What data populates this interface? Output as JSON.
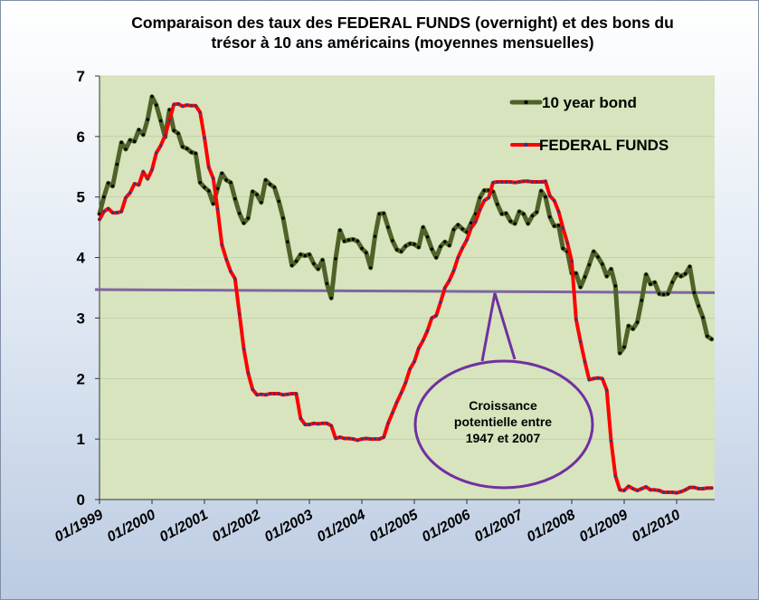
{
  "chart_data": {
    "type": "line",
    "title_line1": "Comparaison des taux des FEDERAL FUNDS (overnight) et des bons du",
    "title_line2": "trésor  à 10 ans américains (moyennes mensuelles)",
    "xlabel": "",
    "ylabel": "",
    "ylim": [
      0,
      7
    ],
    "yticks": [
      "0",
      "1",
      "2",
      "3",
      "4",
      "5",
      "6",
      "7"
    ],
    "xticks": [
      "01/1999",
      "01/2000",
      "01/2001",
      "01/2002",
      "01/2003",
      "01/2004",
      "01/2005",
      "01/2006",
      "01/2007",
      "01/2008",
      "01/2009",
      "01/2010"
    ],
    "x_start": "1999-01",
    "legend_position": "top-right",
    "plot_background": "#d7e4bd",
    "series": [
      {
        "name": "10 year bond",
        "color": "#4f6228",
        "marker_color": "#000000",
        "values": [
          4.72,
          5.0,
          5.23,
          5.18,
          5.54,
          5.9,
          5.79,
          5.94,
          5.92,
          6.11,
          6.03,
          6.28,
          6.66,
          6.52,
          6.26,
          5.99,
          6.44,
          6.1,
          6.05,
          5.83,
          5.8,
          5.74,
          5.72,
          5.24,
          5.16,
          5.1,
          4.89,
          5.14,
          5.39,
          5.28,
          5.24,
          4.97,
          4.73,
          4.57,
          4.65,
          5.09,
          5.04,
          4.91,
          5.28,
          5.21,
          5.16,
          4.93,
          4.65,
          4.26,
          3.87,
          3.94,
          4.05,
          4.03,
          4.05,
          3.9,
          3.81,
          3.96,
          3.57,
          3.33,
          3.98,
          4.45,
          4.27,
          4.29,
          4.3,
          4.27,
          4.15,
          4.08,
          3.83,
          4.35,
          4.72,
          4.73,
          4.5,
          4.28,
          4.13,
          4.1,
          4.19,
          4.23,
          4.22,
          4.17,
          4.5,
          4.34,
          4.14,
          4.0,
          4.18,
          4.26,
          4.2,
          4.46,
          4.54,
          4.47,
          4.42,
          4.57,
          4.72,
          4.99,
          5.11,
          5.11,
          5.09,
          4.88,
          4.72,
          4.73,
          4.6,
          4.56,
          4.76,
          4.72,
          4.56,
          4.69,
          4.75,
          5.1,
          5.0,
          4.67,
          4.52,
          4.53,
          4.15,
          4.1,
          3.74,
          3.74,
          3.51,
          3.68,
          3.88,
          4.1,
          4.01,
          3.89,
          3.69,
          3.81,
          3.53,
          2.42,
          2.52,
          2.87,
          2.82,
          2.93,
          3.29,
          3.72,
          3.56,
          3.59,
          3.4,
          3.39,
          3.4,
          3.59,
          3.73,
          3.69,
          3.73,
          3.85,
          3.42,
          3.2,
          3.01,
          2.7,
          2.65
        ]
      },
      {
        "name": "FEDERAL FUNDS",
        "color": "#ff0000",
        "marker_color": "#1f3a93",
        "values": [
          4.63,
          4.76,
          4.81,
          4.74,
          4.74,
          4.76,
          4.99,
          5.07,
          5.22,
          5.2,
          5.42,
          5.3,
          5.45,
          5.73,
          5.85,
          6.02,
          6.27,
          6.53,
          6.54,
          6.5,
          6.52,
          6.51,
          6.51,
          6.4,
          5.98,
          5.49,
          5.31,
          4.8,
          4.21,
          3.97,
          3.77,
          3.65,
          3.07,
          2.49,
          2.09,
          1.82,
          1.73,
          1.74,
          1.73,
          1.75,
          1.75,
          1.75,
          1.73,
          1.74,
          1.75,
          1.75,
          1.34,
          1.24,
          1.24,
          1.26,
          1.25,
          1.26,
          1.26,
          1.22,
          1.01,
          1.03,
          1.01,
          1.01,
          1.0,
          0.98,
          1.0,
          1.01,
          1.0,
          1.0,
          1.0,
          1.03,
          1.26,
          1.43,
          1.61,
          1.76,
          1.93,
          2.16,
          2.28,
          2.5,
          2.63,
          2.79,
          3.0,
          3.04,
          3.26,
          3.5,
          3.62,
          3.78,
          4.0,
          4.16,
          4.29,
          4.49,
          4.59,
          4.79,
          4.94,
          4.99,
          5.24,
          5.25,
          5.25,
          5.25,
          5.25,
          5.24,
          5.25,
          5.26,
          5.26,
          5.25,
          5.25,
          5.25,
          5.26,
          5.02,
          4.94,
          4.76,
          4.49,
          4.24,
          3.94,
          2.98,
          2.61,
          2.28,
          1.98,
          2.0,
          2.01,
          2.0,
          1.81,
          0.97,
          0.39,
          0.16,
          0.15,
          0.22,
          0.18,
          0.15,
          0.18,
          0.21,
          0.16,
          0.16,
          0.15,
          0.12,
          0.12,
          0.12,
          0.11,
          0.13,
          0.16,
          0.2,
          0.2,
          0.18,
          0.18,
          0.19,
          0.19
        ]
      }
    ],
    "reference_line": {
      "color": "#8064a2",
      "start_value": 3.47,
      "end_value": 3.42
    },
    "callout": {
      "lines": [
        "Croissance",
        "potentielle entre",
        "1947 et 2007"
      ],
      "border_color": "#7030a0"
    }
  }
}
